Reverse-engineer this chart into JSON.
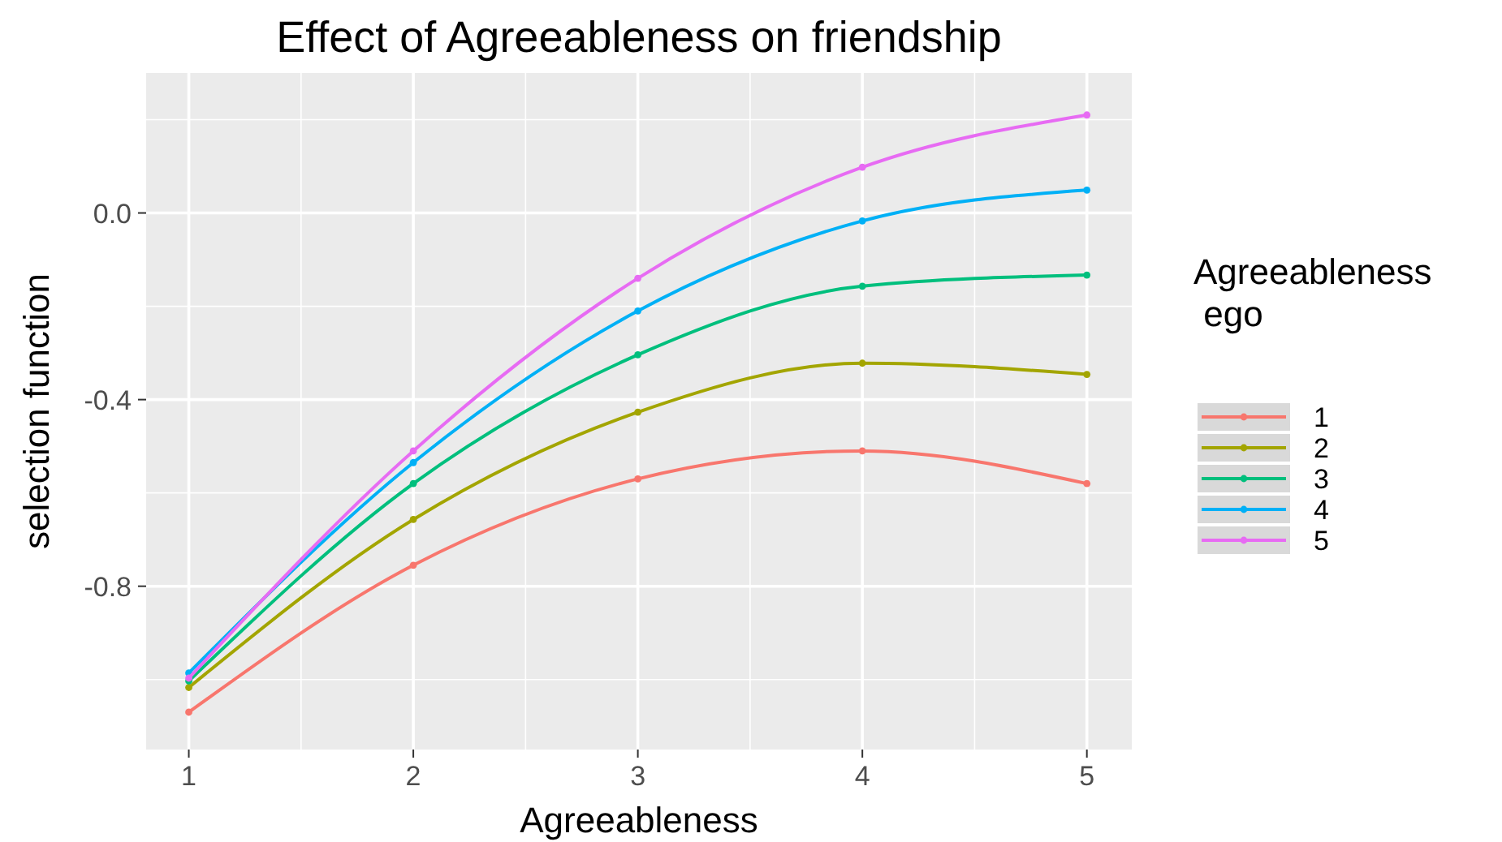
{
  "chart_data": {
    "type": "line",
    "title": "Effect of Agreeableness on friendship",
    "xlabel": "Agreeableness",
    "ylabel": "selection function",
    "legend_title": "Agreeableness\n ego",
    "x": [
      1,
      2,
      3,
      4,
      5
    ],
    "series": [
      {
        "name": "1",
        "color": "#f8766d",
        "values": [
          -1.07,
          -0.755,
          -0.57,
          -0.51,
          -0.58
        ]
      },
      {
        "name": "2",
        "color": "#a3a500",
        "values": [
          -1.017,
          -0.657,
          -0.427,
          -0.322,
          -0.346
        ]
      },
      {
        "name": "3",
        "color": "#00bf7d",
        "values": [
          -1.003,
          -0.58,
          -0.304,
          -0.157,
          -0.133
        ]
      },
      {
        "name": "4",
        "color": "#00b0f6",
        "values": [
          -0.986,
          -0.535,
          -0.21,
          -0.017,
          0.049
        ]
      },
      {
        "name": "5",
        "color": "#e76bf3",
        "values": [
          -0.997,
          -0.51,
          -0.14,
          0.098,
          0.21
        ]
      }
    ],
    "xlim": [
      0.81,
      5.2
    ],
    "ylim": [
      -1.15,
      0.3
    ],
    "xticks": [
      1,
      2,
      3,
      4,
      5
    ],
    "yticks": [
      {
        "value": 0,
        "label": "0.0"
      },
      {
        "value": -0.4,
        "label": "-0.4"
      },
      {
        "value": -0.8,
        "label": "-0.8"
      }
    ],
    "grid": true,
    "legend": "right",
    "marker": "circle",
    "line_style": "solid"
  }
}
